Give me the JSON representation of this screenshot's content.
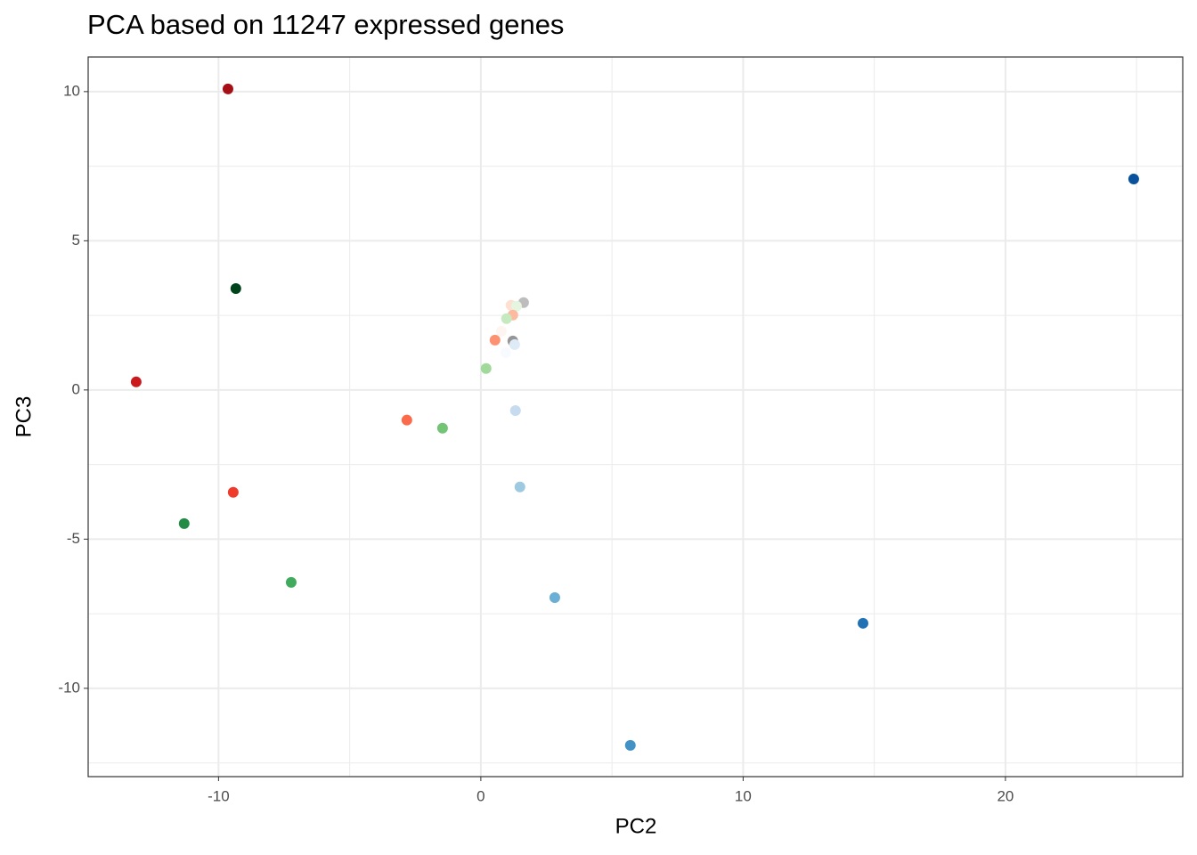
{
  "chart_data": {
    "type": "scatter",
    "title": "PCA based on 11247 expressed genes",
    "x_label": "PC2",
    "y_label": "PC3",
    "x": [
      -9.64,
      24.89,
      -9.34,
      -13.14,
      -9.44,
      -11.31,
      -7.23,
      -2.82,
      -1.46,
      0.2,
      0.54,
      1.32,
      1.49,
      2.82,
      5.7,
      14.57,
      1.63,
      1.15,
      1.36,
      1.22,
      0.98,
      0.78,
      1.22,
      1.29,
      0.95
    ],
    "values": [
      10.09,
      7.07,
      3.4,
      0.27,
      -3.43,
      -4.48,
      -6.45,
      -1.01,
      -1.28,
      0.72,
      1.67,
      -0.69,
      -3.25,
      -6.96,
      -11.91,
      -7.82,
      2.93,
      2.84,
      2.81,
      2.51,
      2.39,
      1.97,
      1.64,
      1.52,
      1.25
    ],
    "colors": [
      "#a50f15",
      "#08519c",
      "#00441b",
      "#cb181d",
      "#ef3b2c",
      "#238b45",
      "#41ab5d",
      "#fb6a4a",
      "#74c476",
      "#a1d99b",
      "#fc9272",
      "#c6dbef",
      "#9ecae1",
      "#6baed6",
      "#4292c6",
      "#2171b5",
      "#bdbdbd",
      "#fee0d2",
      "#e5f5e0",
      "#fcbba1",
      "#c7e9c0",
      "#fff5f0",
      "#969696",
      "#deebf7",
      "#f7fbff"
    ],
    "xlim": [
      -14.97,
      26.76
    ],
    "ylim": [
      -12.96,
      11.16
    ],
    "xticks": [
      -10,
      0,
      10,
      20
    ],
    "yticks": [
      -10,
      -5,
      0,
      5,
      10
    ],
    "xminor": [
      -5,
      5,
      15,
      25
    ],
    "yminor": [
      -12.5,
      -7.5,
      -2.5,
      2.5,
      7.5
    ],
    "grid": true
  }
}
